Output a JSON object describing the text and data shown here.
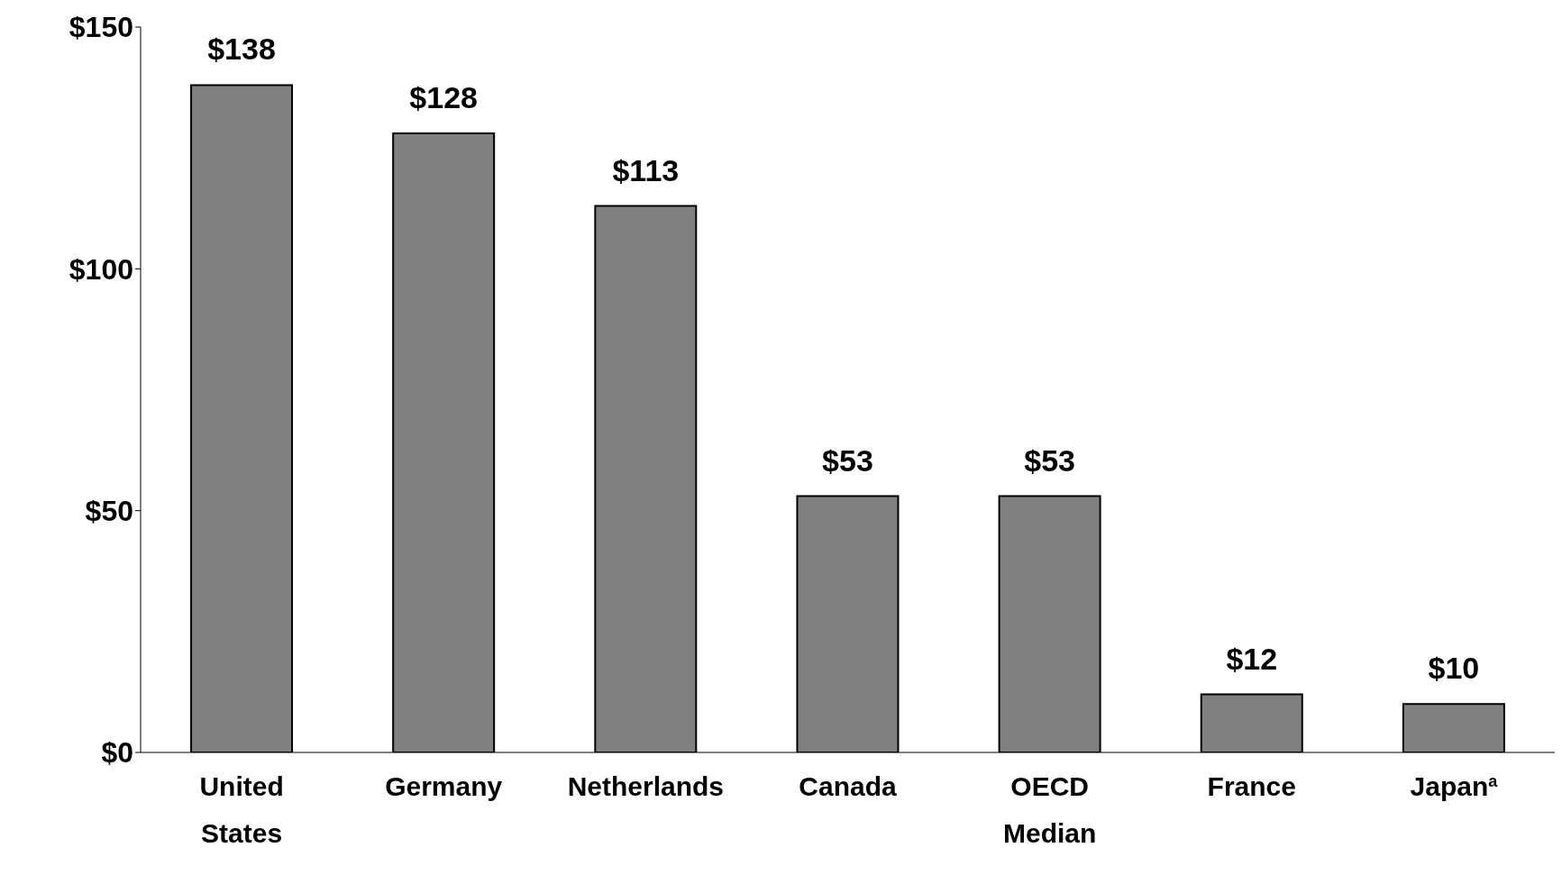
{
  "chart_data": {
    "type": "bar",
    "categories": [
      "United States",
      "Germany",
      "Netherlands",
      "Canada",
      "OECD Median",
      "France",
      "Japan$^{a}$"
    ],
    "values": [
      138,
      128,
      113,
      53,
      53,
      12,
      10
    ],
    "value_labels": [
      "$138",
      "$128",
      "$113",
      "$53",
      "$53",
      "$12",
      "$10"
    ],
    "color": "#808080",
    "ylim": [
      0,
      150
    ],
    "yticks": [
      {
        "value": 0,
        "label": "$0"
      },
      {
        "value": 50,
        "label": "$50"
      },
      {
        "value": 100,
        "label": "$100"
      },
      {
        "value": 150,
        "label": "$150"
      }
    ]
  }
}
